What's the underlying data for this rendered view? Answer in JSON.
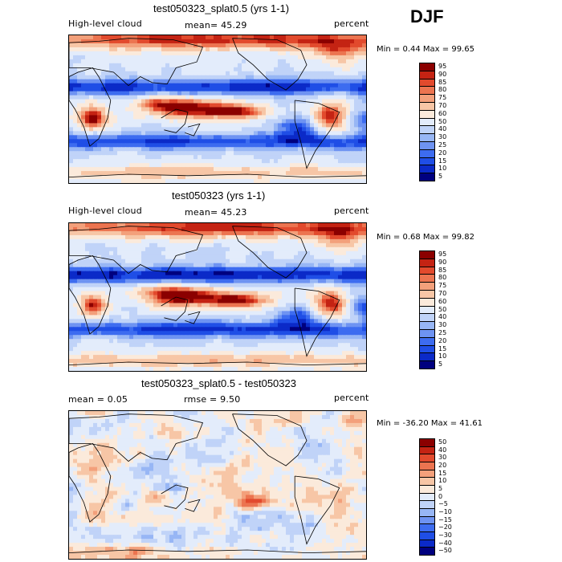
{
  "season": "DJF",
  "colors": {
    "abs_scale": [
      "#00007f",
      "#0b2ac8",
      "#1f4ee6",
      "#3d6cf0",
      "#6e93f2",
      "#97b6f5",
      "#c0d3f8",
      "#e3ecfb",
      "#fbeadb",
      "#f7c6a6",
      "#f3a07b",
      "#ec7450",
      "#e24a2d",
      "#c42313",
      "#8b0000"
    ],
    "diff_scale": [
      "#00007f",
      "#0b2ac8",
      "#1f4ee6",
      "#3d6cf0",
      "#6e93f2",
      "#97b6f5",
      "#c0d3f8",
      "#e3ecfb",
      "#fbeadb",
      "#f7c6a6",
      "#f3a07b",
      "#ec7450",
      "#e24a2d",
      "#c42313",
      "#8b0000"
    ]
  },
  "panels": [
    {
      "title": "test050323_splat0.5 (yrs 1-1)",
      "left_label": "High-level cloud",
      "center_label": "mean=  45.29",
      "right_label": "percent",
      "minmax": "Min =    0.44 Max =   99.65",
      "colorbar_labels": [
        "95",
        "90",
        "85",
        "80",
        "75",
        "70",
        "60",
        "50",
        "40",
        "30",
        "25",
        "20",
        "15",
        "10",
        "5"
      ]
    },
    {
      "title": "test050323 (yrs 1-1)",
      "left_label": "High-level cloud",
      "center_label": "mean=  45.23",
      "right_label": "percent",
      "minmax": "Min =    0.68 Max =   99.82",
      "colorbar_labels": [
        "95",
        "90",
        "85",
        "80",
        "75",
        "70",
        "60",
        "50",
        "40",
        "30",
        "25",
        "20",
        "15",
        "10",
        "5"
      ]
    },
    {
      "title": "test050323_splat0.5 - test050323",
      "left_label": "mean =    0.05",
      "center_label": "rmse =    9.50",
      "right_label": "percent",
      "minmax": "Min = -36.20 Max =   41.61",
      "colorbar_labels": [
        "50",
        "40",
        "30",
        "20",
        "15",
        "10",
        "5",
        "0",
        "−5",
        "−10",
        "−15",
        "−20",
        "−30",
        "−40",
        "−50"
      ]
    }
  ],
  "chart_data": [
    {
      "type": "heatmap",
      "title": "test050323_splat0.5 (yrs 1-1)",
      "variable": "High-level cloud",
      "units": "percent",
      "mean": 45.29,
      "min": 0.44,
      "max": 99.65,
      "levels": [
        5,
        10,
        15,
        20,
        25,
        30,
        40,
        50,
        60,
        70,
        75,
        80,
        85,
        90,
        95
      ]
    },
    {
      "type": "heatmap",
      "title": "test050323 (yrs 1-1)",
      "variable": "High-level cloud",
      "units": "percent",
      "mean": 45.23,
      "min": 0.68,
      "max": 99.82,
      "levels": [
        5,
        10,
        15,
        20,
        25,
        30,
        40,
        50,
        60,
        70,
        75,
        80,
        85,
        90,
        95
      ]
    },
    {
      "type": "heatmap",
      "title": "test050323_splat0.5 - test050323",
      "units": "percent",
      "mean": 0.05,
      "rmse": 9.5,
      "min": -36.2,
      "max": 41.61,
      "levels": [
        -50,
        -40,
        -30,
        -20,
        -15,
        -10,
        -5,
        0,
        5,
        10,
        15,
        20,
        30,
        40,
        50
      ]
    }
  ]
}
